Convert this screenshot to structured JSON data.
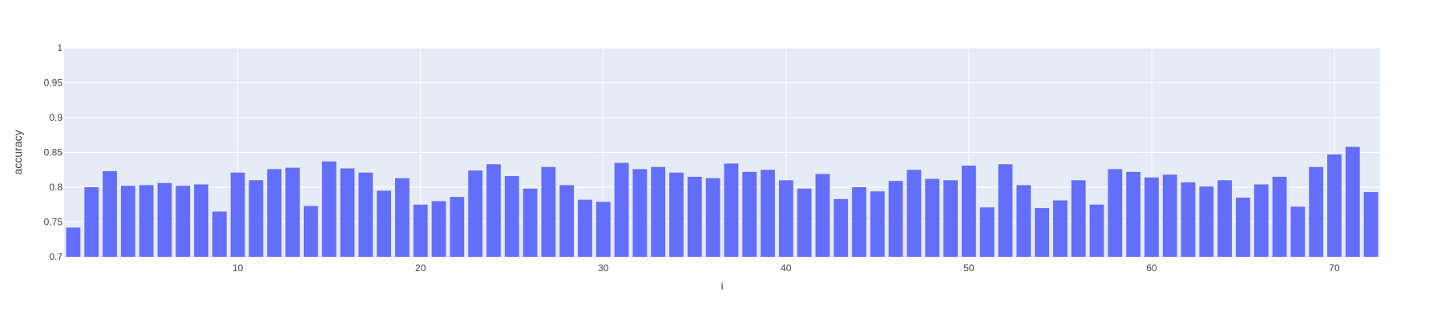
{
  "chart_data": {
    "type": "bar",
    "xlabel": "i",
    "ylabel": "accuracy",
    "ylim": [
      0.7,
      1.0
    ],
    "xlim": [
      0.5,
      72.5
    ],
    "grid": true,
    "yticks": [
      0.7,
      0.75,
      0.8,
      0.85,
      0.9,
      0.95,
      1
    ],
    "ytick_labels": [
      "0.7",
      "0.75",
      "0.8",
      "0.85",
      "0.9",
      "0.95",
      "1"
    ],
    "xticks": [
      10,
      20,
      30,
      40,
      50,
      60,
      70
    ],
    "xtick_labels": [
      "10",
      "20",
      "30",
      "40",
      "50",
      "60",
      "70"
    ],
    "x": [
      1,
      2,
      3,
      4,
      5,
      6,
      7,
      8,
      9,
      10,
      11,
      12,
      13,
      14,
      15,
      16,
      17,
      18,
      19,
      20,
      21,
      22,
      23,
      24,
      25,
      26,
      27,
      28,
      29,
      30,
      31,
      32,
      33,
      34,
      35,
      36,
      37,
      38,
      39,
      40,
      41,
      42,
      43,
      44,
      45,
      46,
      47,
      48,
      49,
      50,
      51,
      52,
      53,
      54,
      55,
      56,
      57,
      58,
      59,
      60,
      61,
      62,
      63,
      64,
      65,
      66,
      67,
      68,
      69,
      70,
      71,
      72
    ],
    "values": [
      0.742,
      0.8,
      0.823,
      0.802,
      0.803,
      0.806,
      0.802,
      0.804,
      0.765,
      0.821,
      0.81,
      0.826,
      0.828,
      0.773,
      0.837,
      0.827,
      0.821,
      0.795,
      0.813,
      0.775,
      0.78,
      0.786,
      0.824,
      0.833,
      0.816,
      0.798,
      0.829,
      0.803,
      0.782,
      0.779,
      0.835,
      0.826,
      0.829,
      0.821,
      0.815,
      0.813,
      0.834,
      0.822,
      0.825,
      0.81,
      0.798,
      0.819,
      0.783,
      0.8,
      0.794,
      0.809,
      0.825,
      0.812,
      0.81,
      0.831,
      0.771,
      0.833,
      0.803,
      0.77,
      0.781,
      0.81,
      0.775,
      0.826,
      0.822,
      0.814,
      0.818,
      0.807,
      0.801,
      0.81,
      0.785,
      0.804,
      0.815,
      0.772,
      0.829,
      0.847,
      0.858,
      0.793
    ],
    "colors": {
      "bar": "#636efa",
      "plot_bg": "#e5ecf6",
      "grid": "#ffffff",
      "text": "#444444"
    }
  }
}
